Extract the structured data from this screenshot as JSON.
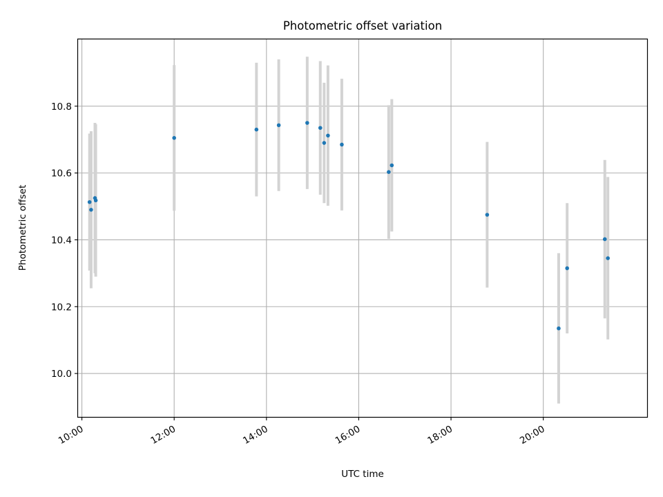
{
  "chart_data": {
    "type": "scatter",
    "title": "Photometric offset variation",
    "xlabel": "UTC time",
    "ylabel": "Photometric offset",
    "x_tick_labels": [
      "10:00",
      "12:00",
      "14:00",
      "16:00",
      "18:00",
      "20:00"
    ],
    "x_ticks": [
      "10:00",
      "12:00",
      "14:00",
      "16:00",
      "18:00",
      "20:00"
    ],
    "y_ticks": [
      10.0,
      10.2,
      10.4,
      10.6,
      10.8
    ],
    "y_tick_labels": [
      "10.0",
      "10.2",
      "10.4",
      "10.6",
      "10.8"
    ],
    "xlim": [
      "09:55",
      "22:15"
    ],
    "ylim": [
      9.87,
      11.0
    ],
    "grid": true,
    "colors": {
      "marker": "#1f77b4",
      "errorbar": "#d3d3d3",
      "grid": "#b0b0b0"
    },
    "points": [
      {
        "x": "10:10",
        "y": 10.513,
        "err": 0.205
      },
      {
        "x": "10:12",
        "y": 10.49,
        "err": 0.235
      },
      {
        "x": "10:17",
        "y": 10.525,
        "err": 0.225
      },
      {
        "x": "10:18",
        "y": 10.518,
        "err": 0.228
      },
      {
        "x": "12:00",
        "y": 10.705,
        "err": 0.218
      },
      {
        "x": "13:47",
        "y": 10.73,
        "err": 0.2
      },
      {
        "x": "14:16",
        "y": 10.743,
        "err": 0.197
      },
      {
        "x": "14:53",
        "y": 10.75,
        "err": 0.198
      },
      {
        "x": "15:10",
        "y": 10.735,
        "err": 0.2
      },
      {
        "x": "15:15",
        "y": 10.69,
        "err": 0.18
      },
      {
        "x": "15:20",
        "y": 10.712,
        "err": 0.21
      },
      {
        "x": "15:38",
        "y": 10.685,
        "err": 0.197
      },
      {
        "x": "16:39",
        "y": 10.603,
        "err": 0.2
      },
      {
        "x": "16:43",
        "y": 10.623,
        "err": 0.198
      },
      {
        "x": "18:47",
        "y": 10.475,
        "err": 0.218
      },
      {
        "x": "20:20",
        "y": 10.135,
        "err": 0.225
      },
      {
        "x": "20:31",
        "y": 10.315,
        "err": 0.195
      },
      {
        "x": "21:20",
        "y": 10.402,
        "err": 0.237
      },
      {
        "x": "21:24",
        "y": 10.345,
        "err": 0.243
      }
    ]
  }
}
